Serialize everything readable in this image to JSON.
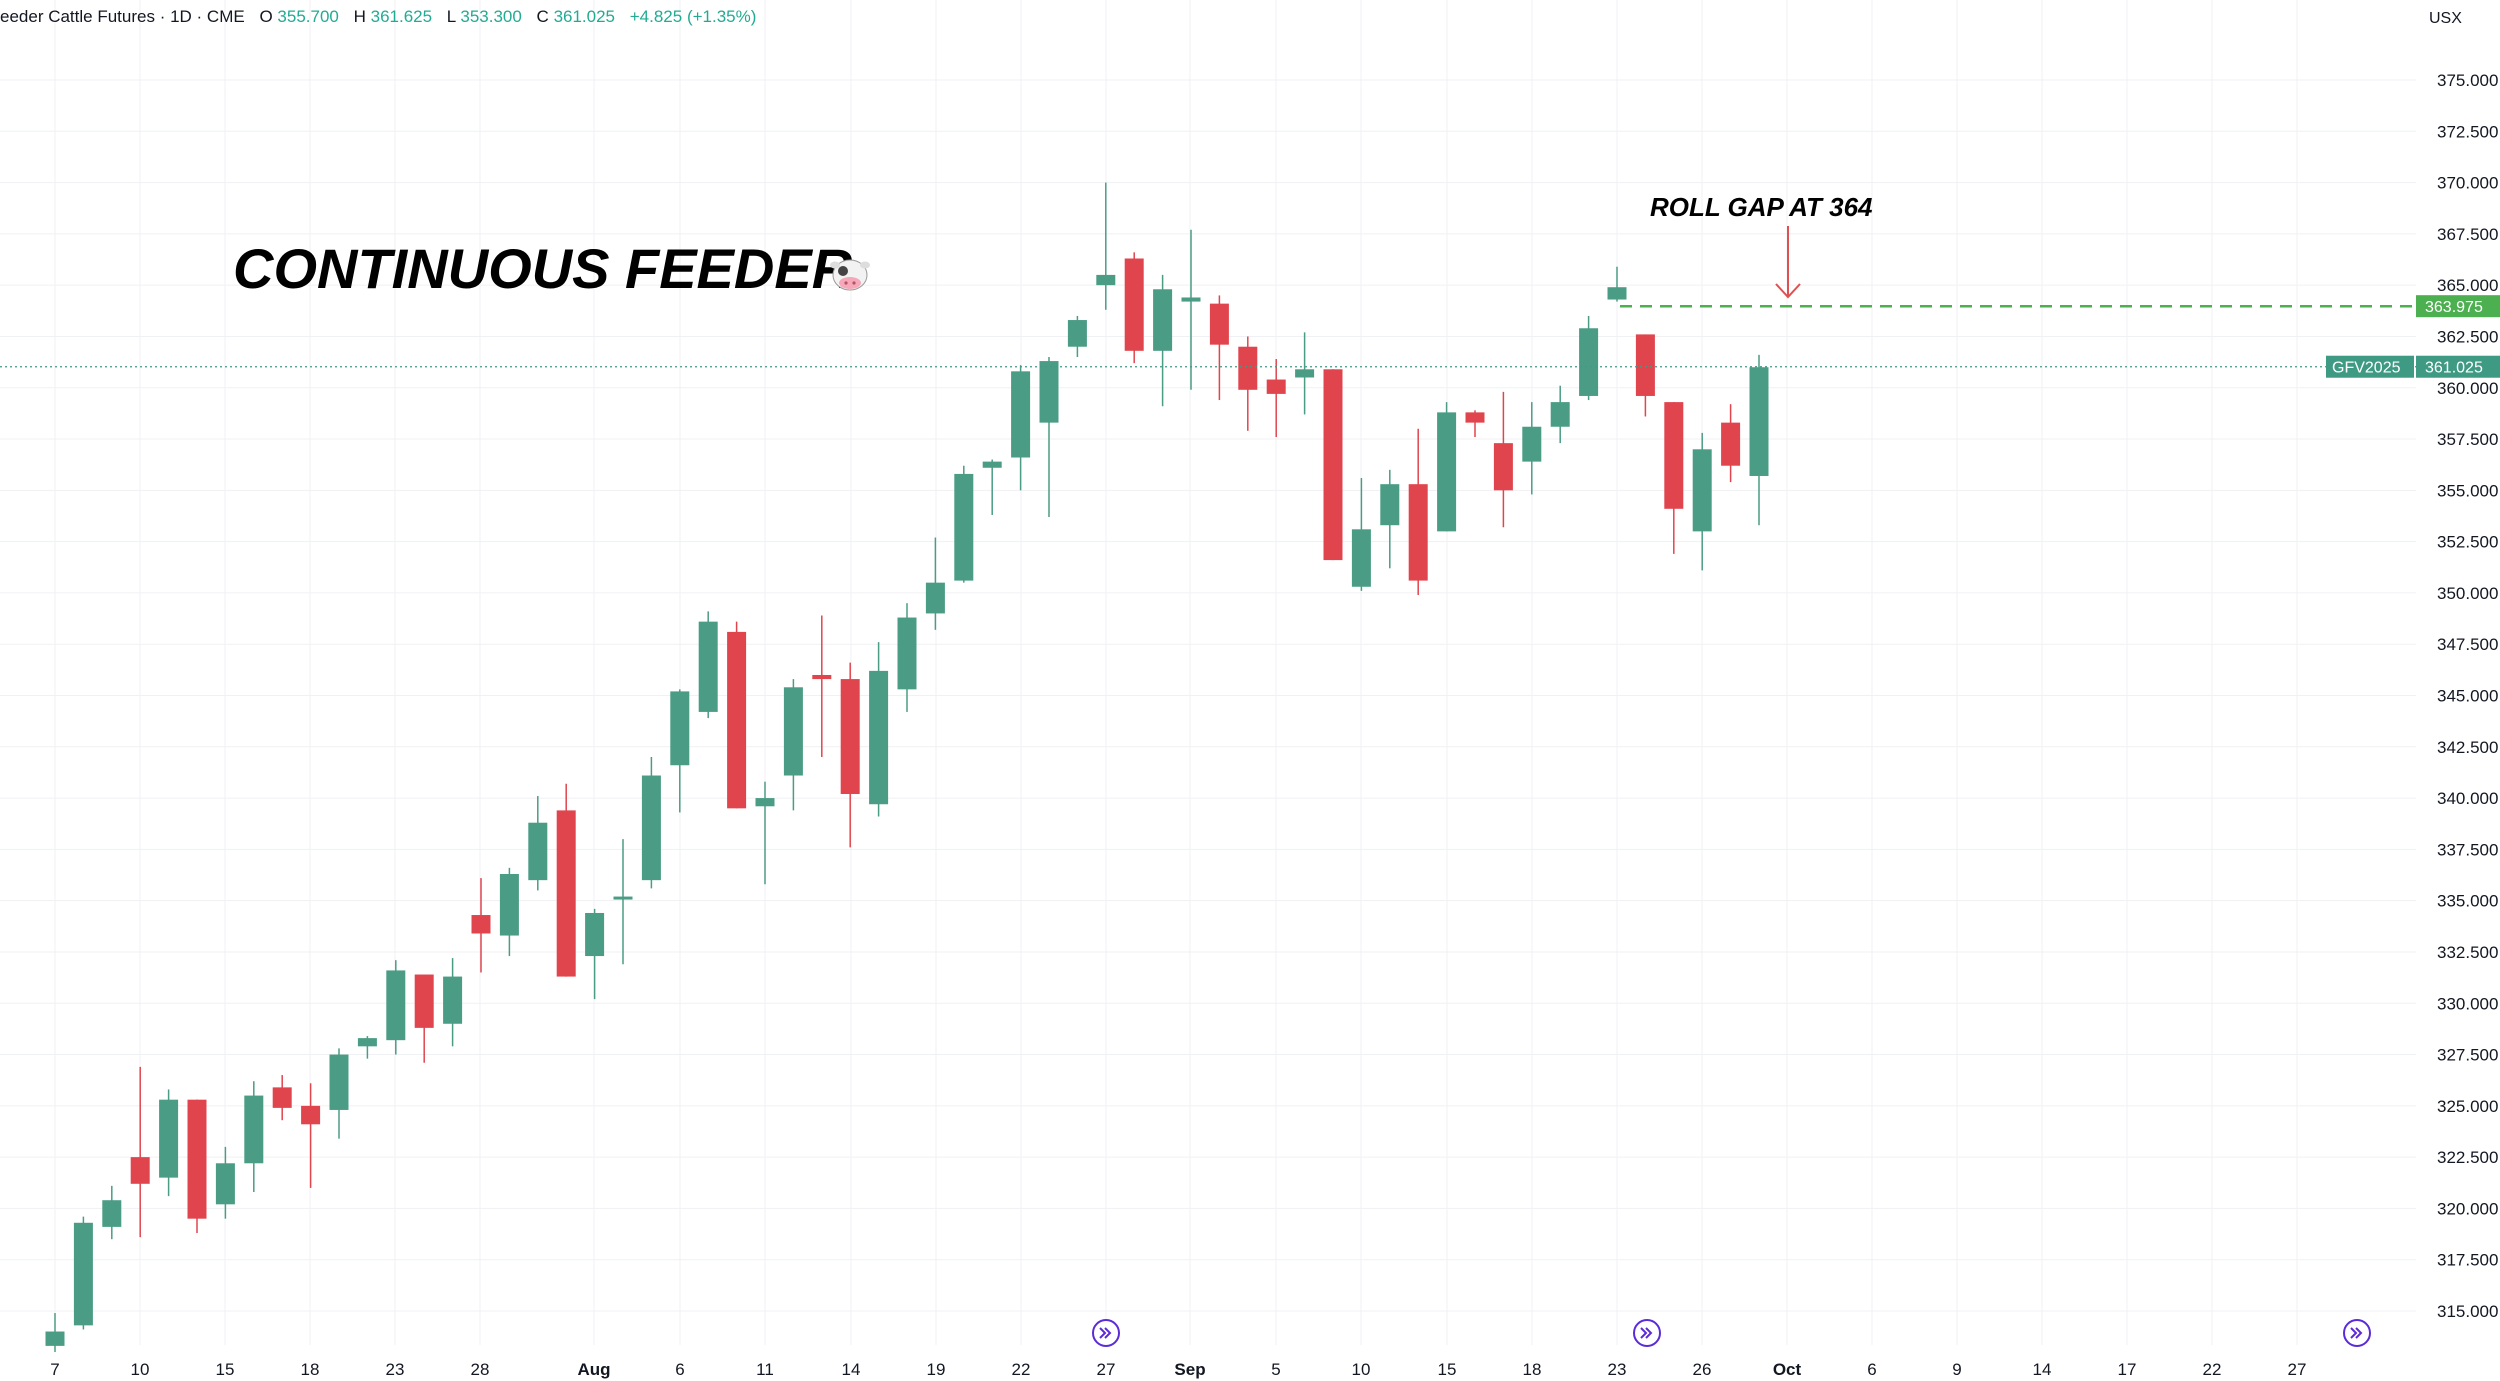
{
  "header": {
    "title": "eeder Cattle Futures · 1D · CME",
    "open_label": "O",
    "open": "355.700",
    "high_label": "H",
    "high": "361.625",
    "low_label": "L",
    "low": "353.300",
    "close_label": "C",
    "close": "361.025",
    "change": "+4.825 (+1.35%)"
  },
  "currency": "USX",
  "overlays": {
    "title": "CONTINUOUS FEEDER",
    "title_icon": "cow-face-icon",
    "annotation": "ROLL GAP AT 364"
  },
  "price_tags": {
    "gap_level": "363.975",
    "symbol": "GFV2025",
    "last": "361.025"
  },
  "colors": {
    "up": "#4a9c84",
    "down": "#e0454e",
    "gap_line": "#4caf50",
    "arrow": "#e05050",
    "grid": "#f0f1f4"
  },
  "chart_data": {
    "type": "candlestick",
    "y_axis": {
      "ylim": [
        313,
        377
      ],
      "ticks": [
        "315.000",
        "317.500",
        "320.000",
        "322.500",
        "325.000",
        "327.500",
        "330.000",
        "332.500",
        "335.000",
        "337.500",
        "340.000",
        "342.500",
        "345.000",
        "347.500",
        "350.000",
        "352.500",
        "355.000",
        "357.500",
        "360.000",
        "362.500",
        "365.000",
        "367.500",
        "370.000",
        "372.500",
        "375.000"
      ]
    },
    "x_axis": {
      "labels": [
        "7",
        "10",
        "15",
        "18",
        "23",
        "28",
        "Aug",
        "6",
        "11",
        "14",
        "19",
        "22",
        "27",
        "Sep",
        "5",
        "10",
        "15",
        "18",
        "23",
        "26",
        "Oct",
        "6",
        "9",
        "14",
        "17",
        "22",
        "27"
      ],
      "bold": [
        "Aug",
        "Sep",
        "Oct"
      ]
    },
    "candles": [
      {
        "o": 313.3,
        "h": 314.9,
        "l": 313.0,
        "c": 314.0
      },
      {
        "o": 314.3,
        "h": 319.6,
        "l": 314.1,
        "c": 319.3
      },
      {
        "o": 319.1,
        "h": 321.1,
        "l": 318.5,
        "c": 320.4
      },
      {
        "o": 322.5,
        "h": 326.9,
        "l": 318.6,
        "c": 321.2
      },
      {
        "o": 321.5,
        "h": 325.8,
        "l": 320.6,
        "c": 325.3
      },
      {
        "o": 325.3,
        "h": 325.3,
        "l": 318.8,
        "c": 319.5
      },
      {
        "o": 320.2,
        "h": 323.0,
        "l": 319.5,
        "c": 322.2
      },
      {
        "o": 322.2,
        "h": 326.2,
        "l": 320.8,
        "c": 325.5
      },
      {
        "o": 325.9,
        "h": 326.5,
        "l": 324.3,
        "c": 324.9
      },
      {
        "o": 325.0,
        "h": 326.1,
        "l": 321.0,
        "c": 324.1
      },
      {
        "o": 324.8,
        "h": 327.8,
        "l": 323.4,
        "c": 327.5
      },
      {
        "o": 327.9,
        "h": 328.4,
        "l": 327.3,
        "c": 328.3
      },
      {
        "o": 328.2,
        "h": 332.1,
        "l": 327.5,
        "c": 331.6
      },
      {
        "o": 331.4,
        "h": 331.4,
        "l": 327.1,
        "c": 328.8
      },
      {
        "o": 329.0,
        "h": 332.2,
        "l": 327.9,
        "c": 331.3
      },
      {
        "o": 334.3,
        "h": 336.1,
        "l": 331.5,
        "c": 333.4
      },
      {
        "o": 333.3,
        "h": 336.6,
        "l": 332.3,
        "c": 336.3
      },
      {
        "o": 336.0,
        "h": 340.1,
        "l": 335.5,
        "c": 338.8
      },
      {
        "o": 339.4,
        "h": 340.7,
        "l": 331.3,
        "c": 331.3
      },
      {
        "o": 332.3,
        "h": 334.6,
        "l": 330.2,
        "c": 334.4
      },
      {
        "o": 335.2,
        "h": 338.0,
        "l": 331.9,
        "c": 335.2
      },
      {
        "o": 336.0,
        "h": 342.0,
        "l": 335.6,
        "c": 341.1
      },
      {
        "o": 341.6,
        "h": 345.3,
        "l": 339.3,
        "c": 345.2
      },
      {
        "o": 344.2,
        "h": 349.1,
        "l": 343.9,
        "c": 348.6
      },
      {
        "o": 348.1,
        "h": 348.6,
        "l": 339.5,
        "c": 339.5
      },
      {
        "o": 339.6,
        "h": 340.8,
        "l": 335.8,
        "c": 340.0
      },
      {
        "o": 341.1,
        "h": 345.8,
        "l": 339.4,
        "c": 345.4
      },
      {
        "o": 346.0,
        "h": 348.9,
        "l": 342.0,
        "c": 345.8
      },
      {
        "o": 345.8,
        "h": 346.6,
        "l": 337.6,
        "c": 340.2
      },
      {
        "o": 339.7,
        "h": 347.6,
        "l": 339.1,
        "c": 346.2
      },
      {
        "o": 345.3,
        "h": 349.5,
        "l": 344.2,
        "c": 348.8
      },
      {
        "o": 349.0,
        "h": 352.7,
        "l": 348.2,
        "c": 350.5
      },
      {
        "o": 350.6,
        "h": 356.2,
        "l": 350.5,
        "c": 355.8
      },
      {
        "o": 356.1,
        "h": 356.5,
        "l": 353.8,
        "c": 356.4
      },
      {
        "o": 356.6,
        "h": 361.1,
        "l": 355.0,
        "c": 360.8
      },
      {
        "o": 358.3,
        "h": 361.5,
        "l": 353.7,
        "c": 361.3
      },
      {
        "o": 362.0,
        "h": 363.5,
        "l": 361.5,
        "c": 363.3
      },
      {
        "o": 365.0,
        "h": 370.0,
        "l": 363.8,
        "c": 365.5
      },
      {
        "o": 366.3,
        "h": 366.6,
        "l": 361.2,
        "c": 361.8
      },
      {
        "o": 361.8,
        "h": 365.5,
        "l": 359.1,
        "c": 364.8
      },
      {
        "o": 364.2,
        "h": 367.7,
        "l": 359.9,
        "c": 364.4
      },
      {
        "o": 364.1,
        "h": 364.5,
        "l": 359.4,
        "c": 362.1
      },
      {
        "o": 362.0,
        "h": 362.5,
        "l": 357.9,
        "c": 359.9
      },
      {
        "o": 360.4,
        "h": 361.4,
        "l": 357.6,
        "c": 359.7
      },
      {
        "o": 360.5,
        "h": 362.7,
        "l": 358.7,
        "c": 360.9
      },
      {
        "o": 360.9,
        "h": 360.9,
        "l": 351.6,
        "c": 351.6
      },
      {
        "o": 350.3,
        "h": 355.6,
        "l": 350.1,
        "c": 353.1
      },
      {
        "o": 353.3,
        "h": 356.0,
        "l": 351.2,
        "c": 355.3
      },
      {
        "o": 355.3,
        "h": 358.0,
        "l": 349.9,
        "c": 350.6
      },
      {
        "o": 353.0,
        "h": 359.3,
        "l": 353.0,
        "c": 358.8
      },
      {
        "o": 358.8,
        "h": 358.9,
        "l": 357.6,
        "c": 358.3
      },
      {
        "o": 357.3,
        "h": 359.8,
        "l": 353.2,
        "c": 355.0
      },
      {
        "o": 356.4,
        "h": 359.3,
        "l": 354.8,
        "c": 358.1
      },
      {
        "o": 358.1,
        "h": 360.1,
        "l": 357.3,
        "c": 359.3
      },
      {
        "o": 359.6,
        "h": 363.5,
        "l": 359.4,
        "c": 362.9
      },
      {
        "o": 364.3,
        "h": 365.9,
        "l": 364.2,
        "c": 364.9
      },
      {
        "o": 362.6,
        "h": 362.6,
        "l": 358.6,
        "c": 359.6
      },
      {
        "o": 359.3,
        "h": 359.3,
        "l": 351.9,
        "c": 354.1
      },
      {
        "o": 353.0,
        "h": 357.8,
        "l": 351.1,
        "c": 357.0
      },
      {
        "o": 358.3,
        "h": 359.2,
        "l": 355.4,
        "c": 356.2
      },
      {
        "o": 355.7,
        "h": 361.6,
        "l": 353.3,
        "c": 361.0
      }
    ]
  }
}
